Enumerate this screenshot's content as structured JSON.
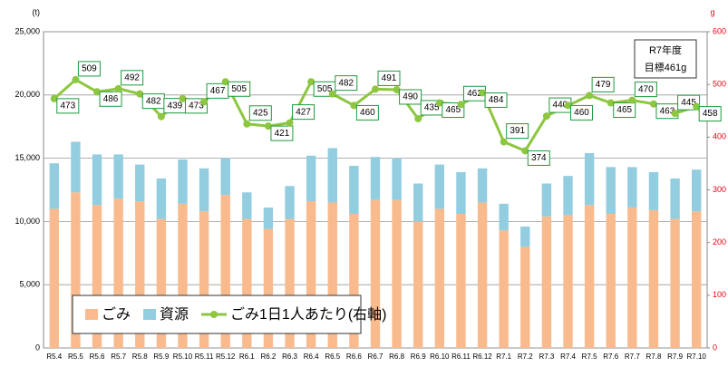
{
  "chart_data": {
    "type": "bar-line",
    "y_unit": "(t)",
    "y2_unit": "g",
    "annotation": [
      "R7年度",
      "目標461g"
    ],
    "categories": [
      "R5.4",
      "R5.5",
      "R5.6",
      "R5.7",
      "R5.8",
      "R5.9",
      "R5.10",
      "R5.11",
      "R5.12",
      "R6.1",
      "R6.2",
      "R6.3",
      "R6.4",
      "R6.5",
      "R6.6",
      "R6.7",
      "R6.8",
      "R6.9",
      "R6.10",
      "R6.11",
      "R6.12",
      "R7.1",
      "R7.2",
      "R7.3",
      "R7.4",
      "R7.5",
      "R7.6",
      "R7.7",
      "R7.8",
      "R7.9",
      "R7.10"
    ],
    "series": [
      {
        "name": "ごみ",
        "type": "bar",
        "color": "#f9bb8e",
        "values": [
          11000,
          12300,
          11300,
          11800,
          11600,
          10200,
          11400,
          10800,
          12100,
          10200,
          9400,
          10200,
          11600,
          11500,
          10600,
          11700,
          11700,
          10000,
          11000,
          10600,
          11500,
          9300,
          8000,
          10400,
          10500,
          11300,
          10600,
          11100,
          10900,
          10200,
          10800
        ]
      },
      {
        "name": "資源",
        "type": "bar",
        "color": "#92cde0",
        "values": [
          3600,
          4000,
          4000,
          3500,
          2900,
          3200,
          3500,
          3400,
          2900,
          2100,
          1700,
          2600,
          3600,
          4300,
          3800,
          3400,
          3300,
          3000,
          3500,
          3300,
          2700,
          2100,
          1600,
          2600,
          3100,
          4100,
          3700,
          3200,
          3000,
          3200,
          3300
        ]
      },
      {
        "name": "ごみ1日1人あたり(右軸)",
        "type": "line",
        "axis": "y2",
        "color": "#8dc63f",
        "values": [
          473,
          509,
          486,
          492,
          482,
          439,
          473,
          467,
          505,
          425,
          421,
          427,
          505,
          482,
          460,
          491,
          490,
          435,
          465,
          462,
          484,
          391,
          374,
          440,
          460,
          479,
          465,
          470,
          463,
          445,
          458
        ]
      }
    ],
    "ylim": [
      0,
      25000
    ],
    "yticks": [
      0,
      {
        "value": 5000,
        "label": "5,000"
      },
      {
        "value": 10000,
        "label": "10,000"
      },
      {
        "value": 15000,
        "label": "15,000"
      },
      {
        "value": 20000,
        "label": "20,000"
      },
      {
        "value": 25000,
        "label": "25,000"
      }
    ],
    "y2lim": [
      0,
      600
    ],
    "y2ticks": [
      0,
      100,
      200,
      300,
      400,
      500,
      600
    ],
    "grid": true,
    "legend": "bottom-left"
  }
}
